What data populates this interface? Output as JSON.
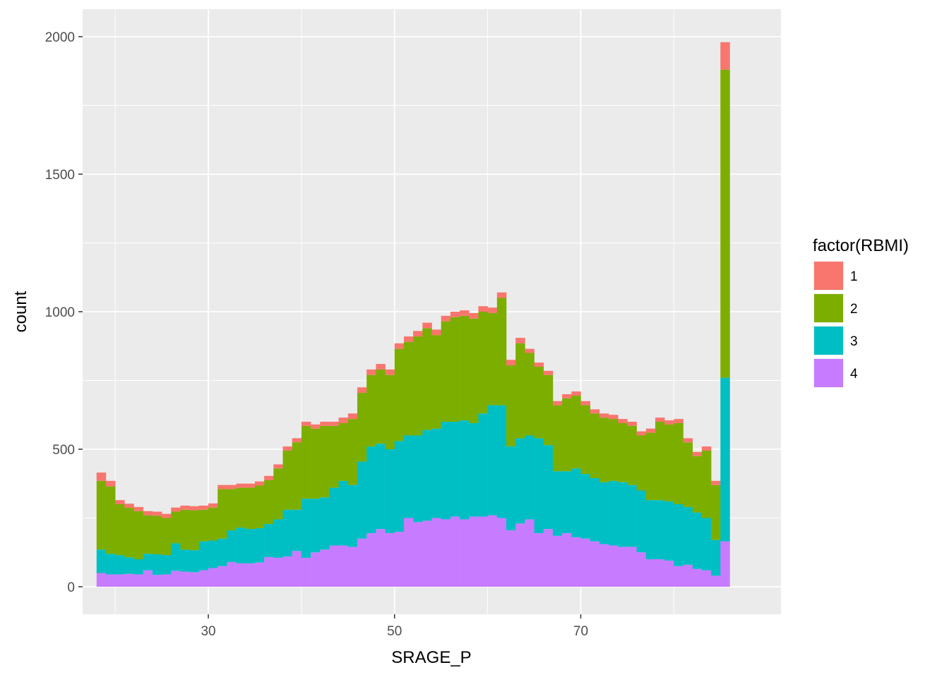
{
  "chart_data": {
    "type": "bar",
    "subtype": "stacked-histogram",
    "xlabel": "SRAGE_P",
    "ylabel": "count",
    "xlim": [
      16.5,
      91.5
    ],
    "ylim": [
      -100,
      2100
    ],
    "x_ticks": [
      30,
      50,
      70
    ],
    "y_ticks": [
      0,
      500,
      1000,
      1500,
      2000
    ],
    "grid": true,
    "legend": {
      "title": "factor(RBMI)",
      "position": "right",
      "entries": [
        {
          "label": "1",
          "color": "#F8766D"
        },
        {
          "label": "2",
          "color": "#7CAE00"
        },
        {
          "label": "3",
          "color": "#00BFC4"
        },
        {
          "label": "4",
          "color": "#C77CFF"
        }
      ]
    },
    "bin_width": 1,
    "bin_start": 18,
    "stack_order": [
      "4",
      "3",
      "2",
      "1"
    ],
    "series": [
      {
        "name": "4",
        "color": "#C77CFF",
        "values": [
          50,
          45,
          45,
          47,
          45,
          60,
          43,
          45,
          58,
          55,
          53,
          60,
          68,
          75,
          90,
          85,
          85,
          88,
          108,
          105,
          110,
          130,
          105,
          125,
          135,
          150,
          150,
          145,
          175,
          195,
          210,
          195,
          200,
          250,
          235,
          240,
          250,
          245,
          255,
          245,
          255,
          255,
          260,
          250,
          205,
          230,
          245,
          195,
          210,
          185,
          195,
          180,
          175,
          165,
          155,
          150,
          145,
          145,
          125,
          100,
          100,
          95,
          75,
          80,
          65,
          60,
          40,
          165
        ]
      },
      {
        "name": "3",
        "color": "#00BFC4",
        "values": [
          85,
          75,
          70,
          60,
          55,
          60,
          75,
          70,
          100,
          80,
          80,
          105,
          100,
          100,
          115,
          130,
          125,
          125,
          120,
          140,
          170,
          150,
          215,
          195,
          190,
          210,
          235,
          225,
          280,
          315,
          310,
          305,
          330,
          300,
          315,
          330,
          325,
          355,
          345,
          360,
          340,
          375,
          400,
          410,
          305,
          310,
          305,
          345,
          305,
          235,
          225,
          250,
          235,
          230,
          225,
          235,
          235,
          225,
          225,
          215,
          215,
          215,
          225,
          210,
          205,
          190,
          130,
          595
        ]
      },
      {
        "name": "2",
        "color": "#7CAE00",
        "values": [
          250,
          245,
          185,
          180,
          175,
          140,
          140,
          135,
          115,
          145,
          145,
          115,
          120,
          180,
          150,
          145,
          150,
          155,
          160,
          185,
          215,
          245,
          265,
          255,
          260,
          225,
          210,
          240,
          250,
          260,
          270,
          270,
          335,
          340,
          360,
          370,
          340,
          365,
          380,
          380,
          380,
          370,
          335,
          390,
          295,
          345,
          300,
          260,
          255,
          240,
          265,
          265,
          250,
          235,
          235,
          225,
          215,
          215,
          200,
          245,
          285,
          280,
          295,
          235,
          205,
          245,
          200,
          1120
        ]
      },
      {
        "name": "1",
        "color": "#F8766D",
        "values": [
          30,
          20,
          15,
          15,
          15,
          15,
          15,
          15,
          15,
          15,
          15,
          15,
          15,
          15,
          15,
          15,
          15,
          15,
          15,
          15,
          15,
          15,
          15,
          15,
          15,
          15,
          20,
          20,
          20,
          20,
          20,
          20,
          20,
          20,
          20,
          20,
          20,
          20,
          20,
          20,
          20,
          20,
          20,
          20,
          20,
          20,
          15,
          15,
          15,
          15,
          15,
          15,
          15,
          15,
          15,
          15,
          15,
          15,
          15,
          15,
          15,
          15,
          15,
          15,
          15,
          15,
          15,
          100
        ]
      }
    ]
  }
}
